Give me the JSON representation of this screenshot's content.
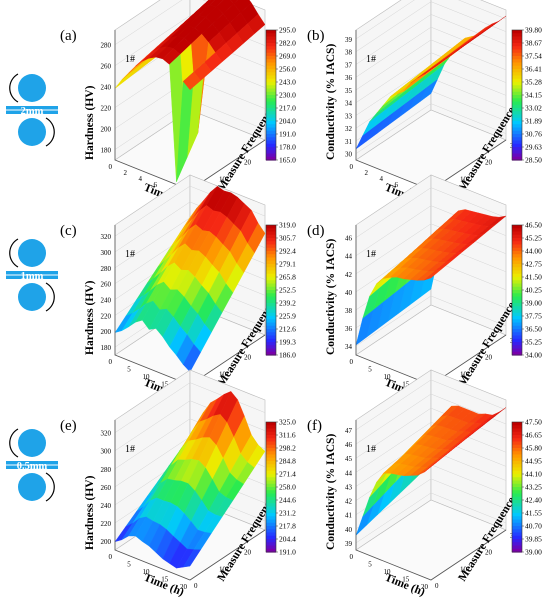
{
  "figure": {
    "rows": [
      {
        "gap_label": "2mm"
      },
      {
        "gap_label": "1mm"
      },
      {
        "gap_label": "0.5mm"
      }
    ]
  },
  "chart_data": [
    {
      "panel": "(a)",
      "type": "surface3d",
      "sample_label": "1#",
      "zlabel": "Hardness (HV)",
      "xlabel": "Time (h)",
      "ylabel": "Measure Frequence",
      "zticks": [
        "180",
        "200",
        "220",
        "240",
        "260",
        "280"
      ],
      "xticks": [
        "0",
        "2",
        "4",
        "6",
        "8",
        "10"
      ],
      "yticks": [
        "0",
        "10",
        "20",
        "30"
      ],
      "colorbar": [
        "295.0",
        "282.0",
        "269.0",
        "256.0",
        "243.0",
        "230.0",
        "217.0",
        "204.0",
        "191.0",
        "178.0",
        "165.0"
      ],
      "zlim": [
        165,
        295
      ],
      "surface_profile": [
        240,
        252,
        262,
        272,
        280,
        286,
        290,
        291,
        288,
        283,
        276,
        270
      ],
      "surface_rise": [
        8,
        12,
        16,
        18,
        20,
        22,
        24,
        24,
        22,
        20,
        18,
        16
      ],
      "dip_value": 168
    },
    {
      "panel": "(b)",
      "type": "surface3d",
      "sample_label": "1#",
      "zlabel": "Conductivity (% IACS)",
      "xlabel": "Time (h)",
      "ylabel": "Measure Frequence",
      "zticks": [
        "30",
        "31",
        "32",
        "33",
        "34",
        "35",
        "36",
        "37",
        "38",
        "39"
      ],
      "xticks": [
        "0",
        "2",
        "4",
        "6",
        "8",
        "10"
      ],
      "yticks": [
        "0",
        "10",
        "20",
        "30"
      ],
      "colorbar": [
        "39.80",
        "38.67",
        "37.54",
        "36.41",
        "35.28",
        "34.15",
        "33.02",
        "31.89",
        "30.76",
        "29.63",
        "28.50"
      ],
      "zlim": [
        28.5,
        39.8
      ],
      "surface_profile": [
        29.5,
        31,
        32.5,
        33.5,
        34.5,
        35.5,
        36,
        36.5,
        37.5,
        38.2,
        38.8,
        39.5
      ],
      "surface_rise": [
        0.5,
        0.6,
        0.7,
        0.8,
        0.8,
        0.8,
        0.7,
        0.6,
        0.5,
        0.4,
        0.3,
        0.3
      ]
    },
    {
      "panel": "(c)",
      "type": "surface3d",
      "sample_label": "1#",
      "zlabel": "Hardness (HV)",
      "xlabel": "Time (h)",
      "ylabel": "Measure Frequence",
      "zticks": [
        "180",
        "200",
        "220",
        "240",
        "260",
        "280",
        "300",
        "320"
      ],
      "xticks": [
        "0",
        "5",
        "10",
        "15",
        "20"
      ],
      "yticks": [
        "0",
        "10",
        "20",
        "30"
      ],
      "colorbar": [
        "319.0",
        "305.7",
        "292.4",
        "279.1",
        "265.8",
        "252.5",
        "239.2",
        "225.9",
        "212.6",
        "199.3",
        "186.0"
      ],
      "zlim": [
        186,
        319
      ],
      "surface_profile": [
        210,
        215,
        222,
        230,
        235,
        228,
        232,
        226,
        218,
        212,
        205,
        200
      ],
      "surface_rise": [
        70,
        78,
        82,
        86,
        90,
        95,
        92,
        96,
        100,
        102,
        98,
        95
      ]
    },
    {
      "panel": "(d)",
      "type": "surface3d",
      "sample_label": "1#",
      "zlabel": "Conductivity (% IACS)",
      "xlabel": "Time (h)",
      "ylabel": "Measure Frequence",
      "zticks": [
        "34",
        "36",
        "38",
        "40",
        "42",
        "44",
        "46"
      ],
      "xticks": [
        "0",
        "5",
        "10",
        "15",
        "20"
      ],
      "yticks": [
        "0",
        "10",
        "20",
        "30"
      ],
      "colorbar": [
        "46.50",
        "45.25",
        "44.00",
        "42.75",
        "41.50",
        "40.25",
        "39.00",
        "37.75",
        "36.50",
        "35.25",
        "34.00"
      ],
      "zlim": [
        34,
        46.5
      ],
      "surface_profile": [
        35,
        38,
        40.5,
        42,
        42.8,
        43.2,
        43.5,
        43.6,
        43.8,
        44,
        44.3,
        44.8
      ],
      "surface_rise": [
        0.6,
        1,
        1.4,
        1.6,
        1.8,
        1.8,
        1.6,
        1.6,
        1.5,
        1.4,
        1.3,
        1.2
      ]
    },
    {
      "panel": "(e)",
      "type": "surface3d",
      "sample_label": "1#",
      "zlabel": "Hardness (HV)",
      "xlabel": "Time (h)",
      "ylabel": "Measure Frequence",
      "zticks": [
        "200",
        "220",
        "240",
        "260",
        "280",
        "300",
        "320"
      ],
      "xticks": [
        "0",
        "5",
        "10",
        "15",
        "20"
      ],
      "yticks": [
        "0",
        "10",
        "20",
        "30"
      ],
      "colorbar": [
        "325.0",
        "311.6",
        "298.2",
        "284.8",
        "271.4",
        "258.0",
        "244.6",
        "231.2",
        "217.8",
        "204.4",
        "191.0"
      ],
      "zlim": [
        191,
        325
      ],
      "surface_profile": [
        200,
        205,
        212,
        215,
        212,
        210,
        206,
        202,
        200,
        198,
        202,
        206
      ],
      "surface_rise": [
        60,
        70,
        80,
        90,
        100,
        110,
        120,
        118,
        105,
        90,
        78,
        70
      ]
    },
    {
      "panel": "(f)",
      "type": "surface3d",
      "sample_label": "1#",
      "zlabel": "Conductivity (% IACS)",
      "xlabel": "Time (h)",
      "ylabel": "Measure Frequence",
      "zticks": [
        "39",
        "40",
        "41",
        "42",
        "43",
        "44",
        "45",
        "46",
        "47"
      ],
      "xticks": [
        "0",
        "5",
        "10",
        "15",
        "20"
      ],
      "yticks": [
        "0",
        "10",
        "20",
        "30"
      ],
      "colorbar": [
        "47.50",
        "46.65",
        "45.80",
        "44.95",
        "44.10",
        "43.25",
        "42.40",
        "41.55",
        "40.70",
        "39.85",
        "39.00"
      ],
      "zlim": [
        39,
        47.5
      ],
      "surface_profile": [
        40,
        41.5,
        43,
        44.2,
        45,
        45.2,
        45.3,
        45.4,
        45.6,
        45.8,
        46.2,
        46.8
      ],
      "surface_rise": [
        1.5,
        2,
        2.2,
        1.8,
        1.2,
        1,
        0.9,
        0.8,
        0.8,
        0.7,
        0.7,
        0.6
      ]
    }
  ]
}
